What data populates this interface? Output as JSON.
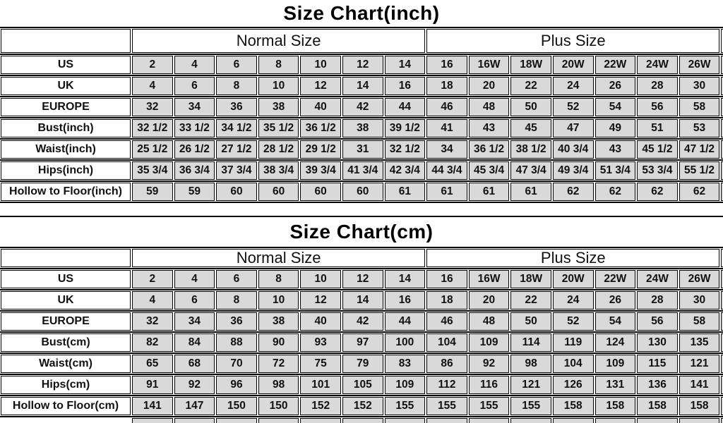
{
  "colors": {
    "cell_fill": "#d9d9d9",
    "header_fill": "#ffffff",
    "border": "#000000",
    "text": "#111111"
  },
  "chart_data": [
    {
      "type": "table",
      "title": "Size Chart(inch)",
      "group_headers": [
        {
          "label": "Normal Size",
          "span": 7
        },
        {
          "label": "Plus Size",
          "span": 7
        }
      ],
      "rows": [
        {
          "label": "US",
          "values": [
            "2",
            "4",
            "6",
            "8",
            "10",
            "12",
            "14",
            "16",
            "16W",
            "18W",
            "20W",
            "22W",
            "24W",
            "26W"
          ]
        },
        {
          "label": "UK",
          "values": [
            "4",
            "6",
            "8",
            "10",
            "12",
            "14",
            "16",
            "18",
            "20",
            "22",
            "24",
            "26",
            "28",
            "30"
          ]
        },
        {
          "label": "EUROPE",
          "values": [
            "32",
            "34",
            "36",
            "38",
            "40",
            "42",
            "44",
            "46",
            "48",
            "50",
            "52",
            "54",
            "56",
            "58"
          ]
        },
        {
          "label": "Bust(inch)",
          "values": [
            "32 1/2",
            "33 1/2",
            "34 1/2",
            "35 1/2",
            "36 1/2",
            "38",
            "39 1/2",
            "41",
            "43",
            "45",
            "47",
            "49",
            "51",
            "53"
          ]
        },
        {
          "label": "Waist(inch)",
          "values": [
            "25 1/2",
            "26 1/2",
            "27 1/2",
            "28 1/2",
            "29 1/2",
            "31",
            "32 1/2",
            "34",
            "36 1/2",
            "38 1/2",
            "40 3/4",
            "43",
            "45 1/2",
            "47 1/2"
          ]
        },
        {
          "label": "Hips(inch)",
          "values": [
            "35 3/4",
            "36 3/4",
            "37 3/4",
            "38 3/4",
            "39 3/4",
            "41 3/4",
            "42 3/4",
            "44 3/4",
            "45 3/4",
            "47 3/4",
            "49 3/4",
            "51 3/4",
            "53 3/4",
            "55 1/2"
          ]
        },
        {
          "label": "Hollow to Floor(inch)",
          "values": [
            "59",
            "59",
            "60",
            "60",
            "60",
            "60",
            "61",
            "61",
            "61",
            "61",
            "62",
            "62",
            "62",
            "62"
          ]
        }
      ]
    },
    {
      "type": "table",
      "title": "Size Chart(cm)",
      "group_headers": [
        {
          "label": "Normal Size",
          "span": 7
        },
        {
          "label": "Plus Size",
          "span": 7
        }
      ],
      "rows": [
        {
          "label": "US",
          "values": [
            "2",
            "4",
            "6",
            "8",
            "10",
            "12",
            "14",
            "16",
            "16W",
            "18W",
            "20W",
            "22W",
            "24W",
            "26W"
          ]
        },
        {
          "label": "UK",
          "values": [
            "4",
            "6",
            "8",
            "10",
            "12",
            "14",
            "16",
            "18",
            "20",
            "22",
            "24",
            "26",
            "28",
            "30"
          ]
        },
        {
          "label": "EUROPE",
          "values": [
            "32",
            "34",
            "36",
            "38",
            "40",
            "42",
            "44",
            "46",
            "48",
            "50",
            "52",
            "54",
            "56",
            "58"
          ]
        },
        {
          "label": "Bust(cm)",
          "values": [
            "82",
            "84",
            "88",
            "90",
            "93",
            "97",
            "100",
            "104",
            "109",
            "114",
            "119",
            "124",
            "130",
            "135"
          ]
        },
        {
          "label": "Waist(cm)",
          "values": [
            "65",
            "68",
            "70",
            "72",
            "75",
            "79",
            "83",
            "86",
            "92",
            "98",
            "104",
            "109",
            "115",
            "121"
          ]
        },
        {
          "label": "Hips(cm)",
          "values": [
            "91",
            "92",
            "96",
            "98",
            "101",
            "105",
            "109",
            "112",
            "116",
            "121",
            "126",
            "131",
            "136",
            "141"
          ]
        },
        {
          "label": "Hollow to Floor(cm)",
          "values": [
            "141",
            "147",
            "150",
            "150",
            "152",
            "152",
            "155",
            "155",
            "155",
            "155",
            "158",
            "158",
            "158",
            "158"
          ]
        }
      ]
    }
  ]
}
